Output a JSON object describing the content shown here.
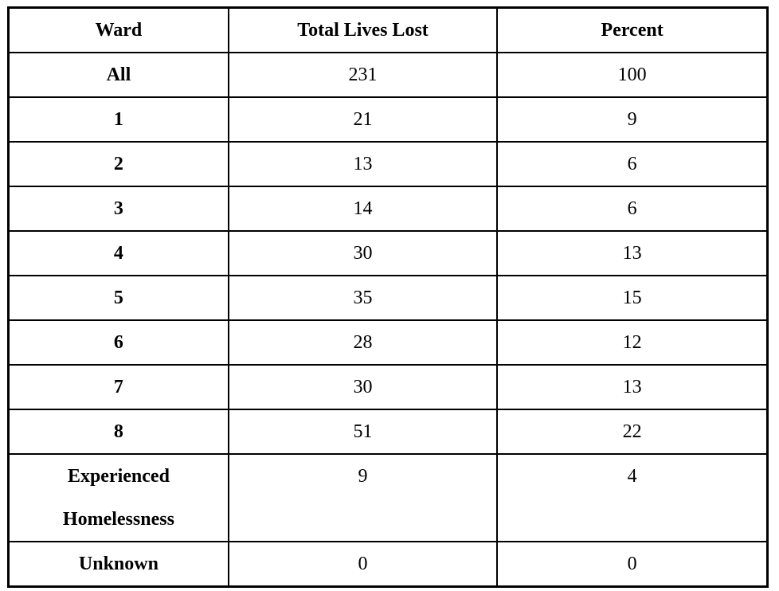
{
  "table": {
    "columns": [
      "Ward",
      "Total Lives Lost",
      "Percent"
    ],
    "rows": [
      [
        "All",
        "231",
        "100"
      ],
      [
        "1",
        "21",
        "9"
      ],
      [
        "2",
        "13",
        "6"
      ],
      [
        "3",
        "14",
        "6"
      ],
      [
        "4",
        "30",
        "13"
      ],
      [
        "5",
        "35",
        "15"
      ],
      [
        "6",
        "28",
        "12"
      ],
      [
        "7",
        "30",
        "13"
      ],
      [
        "8",
        "51",
        "22"
      ],
      [
        "Experienced Homelessness",
        "9",
        "4"
      ],
      [
        "Unknown",
        "0",
        "0"
      ]
    ]
  },
  "colors": {
    "border": "#000000",
    "text": "#000000",
    "background": "#ffffff"
  }
}
